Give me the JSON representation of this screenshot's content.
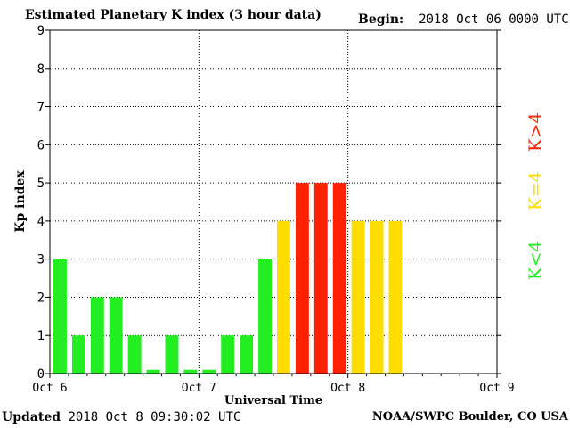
{
  "header": {
    "title": "Estimated Planetary K index (3 hour data)",
    "begin_label": "Begin:",
    "begin_value": "2018 Oct 06 0000 UTC"
  },
  "footer": {
    "updated_label": "Updated",
    "updated_value": "2018 Oct  8 09:30:02 UTC",
    "source": "NOAA/SWPC Boulder, CO USA"
  },
  "legend": {
    "low": "K<4",
    "mid": "K=4",
    "high": "K>4"
  },
  "colors": {
    "low": "#22ee22",
    "mid": "#ffdd00",
    "high": "#ff2200",
    "grid": "#000000"
  },
  "chart_data": {
    "type": "bar",
    "title": "Estimated Planetary K index (3 hour data)",
    "xlabel": "Universal Time",
    "ylabel": "Kp index",
    "ylim": [
      0,
      9
    ],
    "yticks": [
      0,
      1,
      2,
      3,
      4,
      5,
      6,
      7,
      8,
      9
    ],
    "xticks": [
      "Oct 6",
      "Oct 7",
      "Oct 8",
      "Oct 9"
    ],
    "interval_hours": 3,
    "slots": 24,
    "grid": true,
    "values": [
      3,
      1,
      2,
      2,
      1,
      0.1,
      1,
      0.1,
      0.1,
      1,
      1,
      3,
      4,
      5,
      5,
      5,
      4,
      4,
      4
    ]
  }
}
